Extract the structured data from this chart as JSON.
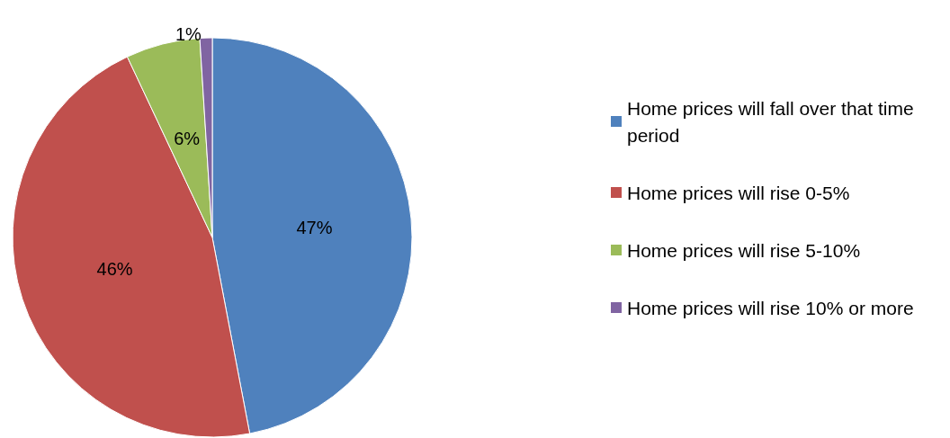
{
  "chart_data": {
    "type": "pie",
    "categories": [
      "Home prices will fall over that time period",
      "Home prices will rise 0-5%",
      "Home prices will rise 5-10%",
      "Home prices will rise 10% or more"
    ],
    "values": [
      47,
      46,
      6,
      1
    ],
    "colors": [
      "#4f81bd",
      "#c0504d",
      "#9bbb59",
      "#8064a2"
    ],
    "value_labels": [
      "47%",
      "46%",
      "6%",
      "1%"
    ],
    "legend": "right"
  }
}
